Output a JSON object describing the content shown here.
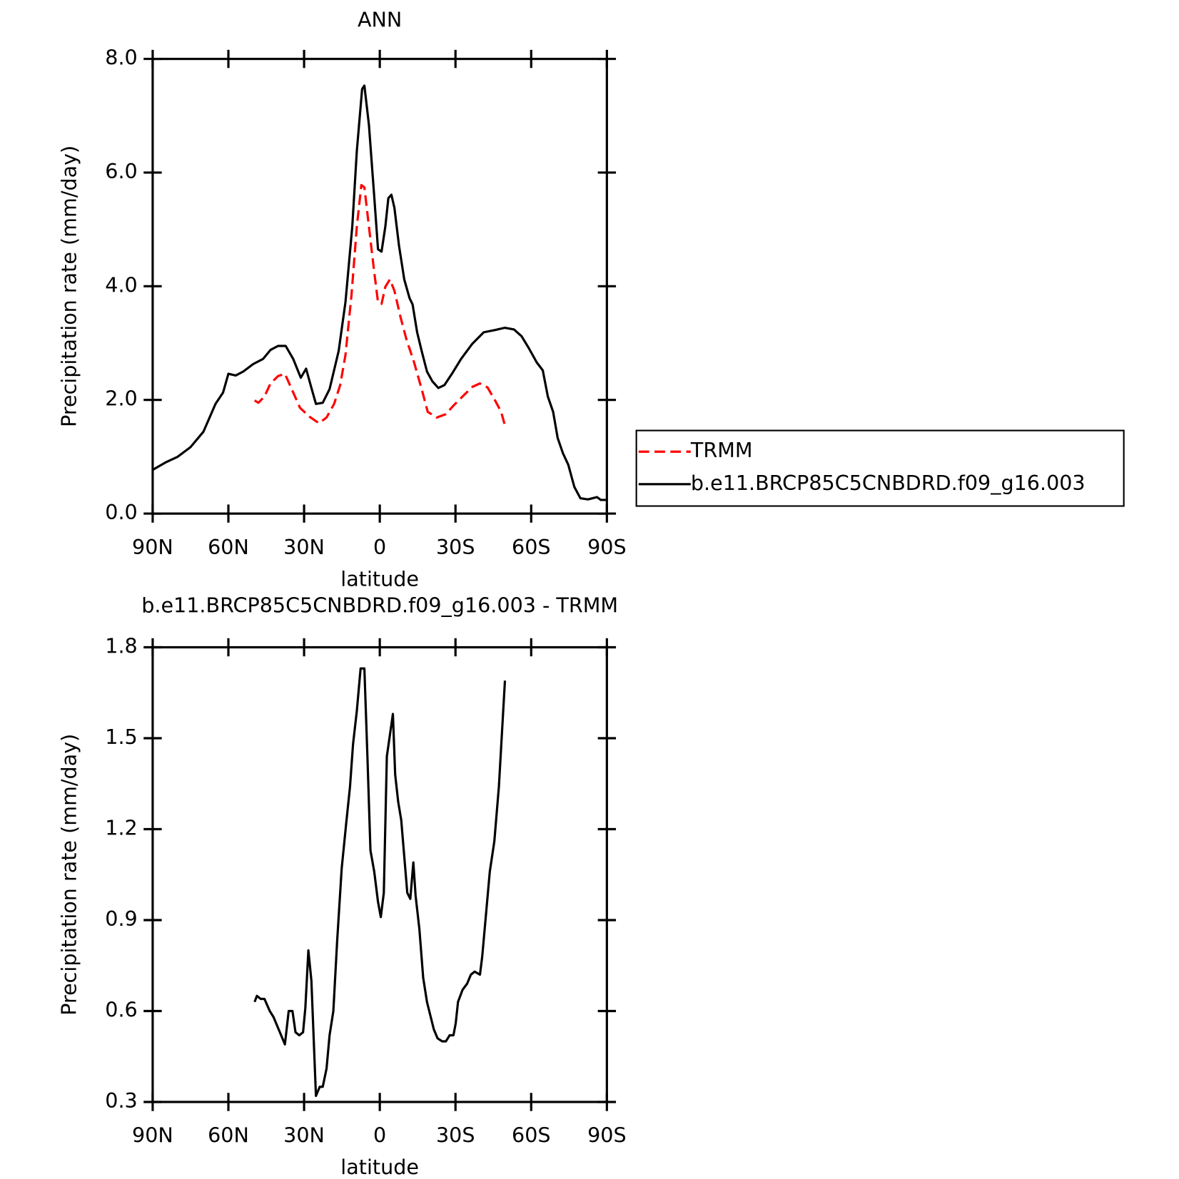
{
  "chart_data": [
    {
      "type": "line",
      "title": "ANN",
      "xlabel": "latitude",
      "ylabel": "Precipitation rate (mm/day)",
      "xlim": [
        90,
        -90
      ],
      "xticks": [
        {
          "value": 90,
          "label": "90N"
        },
        {
          "value": 60,
          "label": "60N"
        },
        {
          "value": 30,
          "label": "30N"
        },
        0,
        {
          "value": -30,
          "label": "30S"
        },
        {
          "value": -60,
          "label": "60S"
        },
        {
          "value": -90,
          "label": "90S"
        }
      ],
      "ylim": [
        0,
        8
      ],
      "yticks": [
        {
          "value": 0,
          "label": "0.0"
        },
        {
          "value": 2,
          "label": "2.0"
        },
        {
          "value": 4,
          "label": "4.0"
        },
        {
          "value": 6,
          "label": "6.0"
        },
        {
          "value": 8,
          "label": "8.0"
        }
      ],
      "legend": "right",
      "series": [
        {
          "name": "TRMM",
          "color": "#ff0000",
          "dashed": true,
          "x": [
            49.6,
            48.1,
            45.7,
            43.3,
            40.3,
            37.6,
            34.9,
            31.6,
            27.7,
            24.1,
            21.1,
            18.1,
            15.7,
            13.6,
            11.2,
            9.1,
            7.3,
            6.1,
            4.3,
            2.2,
            0.7,
            -0.7,
            -2.2,
            -4.0,
            -5.8,
            -8.2,
            -10.6,
            -13.6,
            -16.6,
            -19.0,
            -22.6,
            -26.2,
            -29.2,
            -33.7,
            -36.7,
            -39.7,
            -42.7,
            -45.7,
            -48.1,
            -49.6
          ],
          "values": [
            1.99,
            1.95,
            2.06,
            2.29,
            2.42,
            2.46,
            2.19,
            1.86,
            1.7,
            1.59,
            1.69,
            1.93,
            2.26,
            2.79,
            3.85,
            5.05,
            5.78,
            5.74,
            5.05,
            4.25,
            3.72,
            3.69,
            3.99,
            4.12,
            3.92,
            3.46,
            3.06,
            2.66,
            2.19,
            1.79,
            1.69,
            1.75,
            1.9,
            2.1,
            2.23,
            2.29,
            2.22,
            1.99,
            1.79,
            1.55
          ]
        },
        {
          "name": "b.e11.BRCP85C5CNBDRD.f09_g16.003",
          "color": "#000000",
          "dashed": false,
          "x": [
            90,
            84.9,
            80.1,
            75.0,
            69.9,
            65.1,
            62.1,
            60.0,
            57.1,
            54.1,
            50.2,
            46.3,
            43.3,
            40.3,
            37.3,
            34.3,
            31.3,
            29.2,
            27.4,
            25.3,
            22.6,
            19.9,
            16.3,
            13.6,
            10.9,
            9.1,
            7.0,
            6.1,
            4.3,
            2.2,
            0.7,
            -0.7,
            -2.2,
            -3.4,
            -4.6,
            -5.8,
            -7.6,
            -9.7,
            -11.8,
            -13.0,
            -14.8,
            -16.6,
            -18.7,
            -20.8,
            -23.2,
            -25.6,
            -28.6,
            -32.2,
            -36.7,
            -41.2,
            -45.7,
            -49.6,
            -53.2,
            -56.2,
            -59.2,
            -62.2,
            -64.6,
            -66.6,
            -68.7,
            -70.5,
            -72.6,
            -74.7,
            -77.1,
            -79.5,
            -82.5,
            -86.1,
            -87.6,
            -90
          ],
          "values": [
            0.77,
            0.9,
            1.0,
            1.17,
            1.44,
            1.93,
            2.13,
            2.46,
            2.43,
            2.5,
            2.63,
            2.72,
            2.88,
            2.95,
            2.95,
            2.72,
            2.39,
            2.55,
            2.26,
            1.93,
            1.95,
            2.19,
            2.86,
            3.72,
            5.05,
            6.38,
            7.47,
            7.53,
            6.84,
            5.58,
            4.65,
            4.61,
            5.05,
            5.55,
            5.61,
            5.38,
            4.72,
            4.12,
            3.79,
            3.68,
            3.19,
            2.86,
            2.5,
            2.33,
            2.21,
            2.26,
            2.46,
            2.72,
            2.99,
            3.19,
            3.23,
            3.27,
            3.24,
            3.12,
            2.9,
            2.66,
            2.52,
            2.06,
            1.79,
            1.33,
            1.06,
            0.86,
            0.47,
            0.27,
            0.25,
            0.29,
            0.24,
            0.24
          ]
        }
      ]
    },
    {
      "type": "line",
      "title": "b.e11.BRCP85C5CNBDRD.f09_g16.003 - TRMM",
      "xlabel": "latitude",
      "ylabel": "Precipitation rate (mm/day)",
      "xlim": [
        90,
        -90
      ],
      "xticks": [
        {
          "value": 90,
          "label": "90N"
        },
        {
          "value": 60,
          "label": "60N"
        },
        {
          "value": 30,
          "label": "30N"
        },
        0,
        {
          "value": -30,
          "label": "30S"
        },
        {
          "value": -60,
          "label": "60S"
        },
        {
          "value": -90,
          "label": "90S"
        }
      ],
      "ylim": [
        0.3,
        1.8
      ],
      "yticks": [
        0.3,
        0.6,
        0.9,
        1.2,
        1.5,
        1.8
      ],
      "series": [
        {
          "color": "#000000",
          "dashed": false,
          "x": [
            49.6,
            48.7,
            47.2,
            45.7,
            43.6,
            42.1,
            40.6,
            39.1,
            37.6,
            36.1,
            34.6,
            33.4,
            31.9,
            30.4,
            29.5,
            28.3,
            27.1,
            25.3,
            23.8,
            22.6,
            21.1,
            19.9,
            18.4,
            16.9,
            15.1,
            13.3,
            11.8,
            10.6,
            9.1,
            7.6,
            6.1,
            4.9,
            3.7,
            2.2,
            0.7,
            -0.4,
            -1.6,
            -2.8,
            -4.0,
            -5.2,
            -6.1,
            -7.3,
            -8.5,
            -9.7,
            -10.9,
            -12.1,
            -13.3,
            -14.2,
            -15.7,
            -17.2,
            -18.7,
            -20.2,
            -21.4,
            -22.9,
            -24.7,
            -26.2,
            -27.7,
            -29.2,
            -30.1,
            -31.0,
            -32.8,
            -34.6,
            -36.1,
            -37.6,
            -39.7,
            -40.6,
            -42.1,
            -43.6,
            -45.4,
            -47.2,
            -49.6
          ],
          "values": [
            0.63,
            0.65,
            0.64,
            0.64,
            0.6,
            0.58,
            0.55,
            0.52,
            0.49,
            0.6,
            0.6,
            0.53,
            0.52,
            0.53,
            0.61,
            0.8,
            0.7,
            0.32,
            0.35,
            0.35,
            0.41,
            0.52,
            0.6,
            0.83,
            1.07,
            1.22,
            1.34,
            1.48,
            1.59,
            1.73,
            1.73,
            1.44,
            1.13,
            1.06,
            0.96,
            0.91,
            0.99,
            1.44,
            1.51,
            1.58,
            1.38,
            1.29,
            1.23,
            1.11,
            0.99,
            0.97,
            1.09,
            0.98,
            0.87,
            0.71,
            0.63,
            0.58,
            0.54,
            0.51,
            0.5,
            0.5,
            0.52,
            0.52,
            0.56,
            0.63,
            0.67,
            0.69,
            0.72,
            0.73,
            0.72,
            0.78,
            0.92,
            1.06,
            1.16,
            1.34,
            1.69
          ]
        }
      ]
    }
  ]
}
